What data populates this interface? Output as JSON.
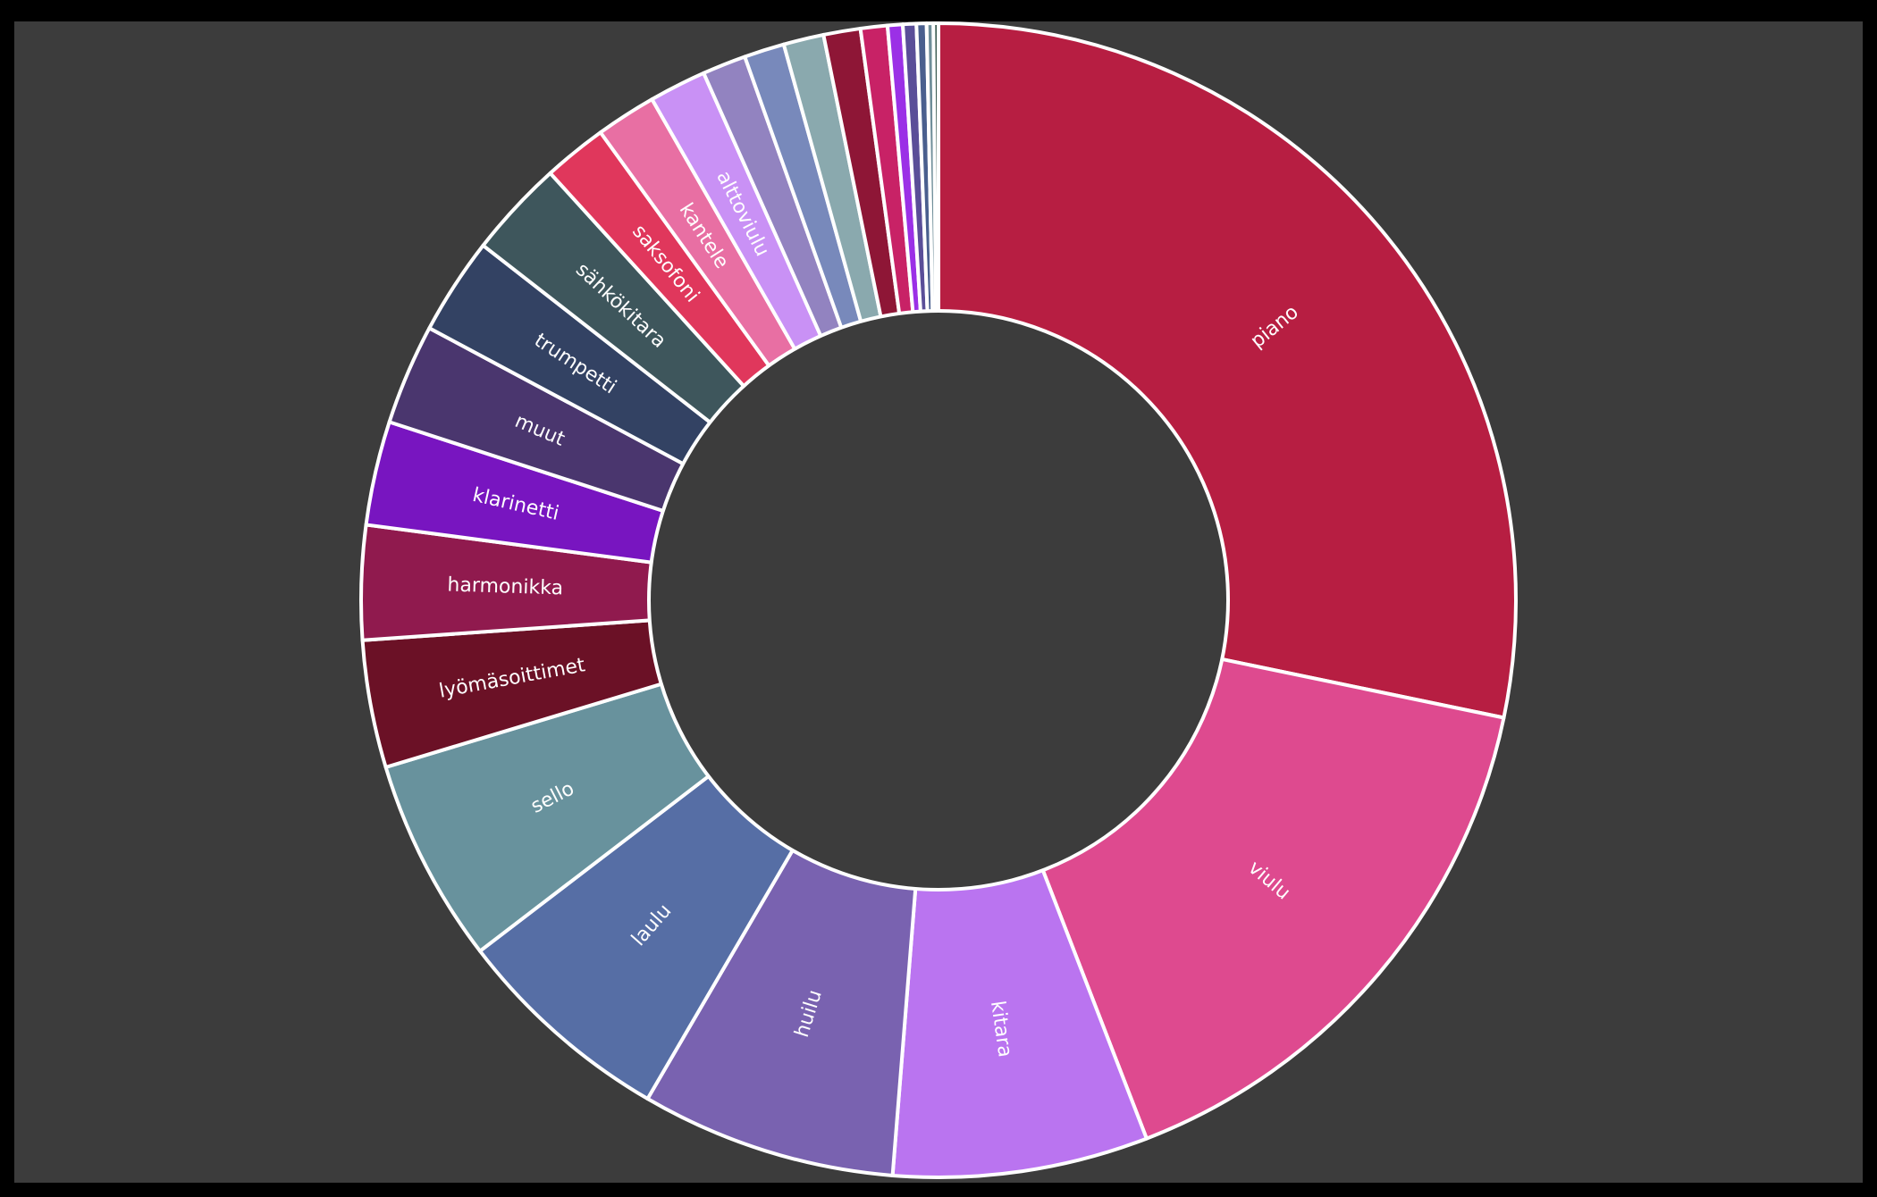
{
  "chart_data": {
    "type": "pie",
    "subtype": "donut",
    "title": "",
    "legend": "none",
    "labels_on_slices": true,
    "slices": [
      {
        "label": "piano",
        "value": 30.1,
        "color": "#b71e42"
      },
      {
        "label": "viulu",
        "value": 16.9,
        "color": "#de4a8f"
      },
      {
        "label": "kitara",
        "value": 7.6,
        "color": "#ba74f0"
      },
      {
        "label": "huilu",
        "value": 7.6,
        "color": "#7962b0"
      },
      {
        "label": "laulu",
        "value": 6.6,
        "color": "#566ea5"
      },
      {
        "label": "sello",
        "value": 6.1,
        "color": "#68929d"
      },
      {
        "label": "lyömäsoittimet",
        "value": 3.8,
        "color": "#6b1126"
      },
      {
        "label": "harmonikka",
        "value": 3.4,
        "color": "#901a4e"
      },
      {
        "label": "klarinetti",
        "value": 3.1,
        "color": "#7815c0"
      },
      {
        "label": "muut",
        "value": 3.0,
        "color": "#4a366e"
      },
      {
        "label": "trumpetti",
        "value": 2.9,
        "color": "#334263"
      },
      {
        "label": "sähkökitara",
        "value": 2.9,
        "color": "#3e565c"
      },
      {
        "label": "saksofoni",
        "value": 1.9,
        "color": "#e0375c"
      },
      {
        "label": "kantele",
        "value": 1.8,
        "color": "#e86fa3"
      },
      {
        "label": "alttoviulu",
        "value": 1.7,
        "color": "#c991f5"
      },
      {
        "label": "",
        "value": 1.3,
        "color": "#9283c0"
      },
      {
        "label": "",
        "value": 1.2,
        "color": "#7889bb"
      },
      {
        "label": "",
        "value": 1.2,
        "color": "#8aa9ae"
      },
      {
        "label": "",
        "value": 1.1,
        "color": "#8e1636"
      },
      {
        "label": "",
        "value": 0.8,
        "color": "#c82266"
      },
      {
        "label": "",
        "value": 0.45,
        "color": "#9b30e6"
      },
      {
        "label": "",
        "value": 0.4,
        "color": "#5a4e98"
      },
      {
        "label": "",
        "value": 0.3,
        "color": "#4a5f8e"
      },
      {
        "label": "",
        "value": 0.2,
        "color": "#6f8e99"
      },
      {
        "label": "",
        "value": 0.15,
        "color": "#3a5a50"
      }
    ]
  }
}
